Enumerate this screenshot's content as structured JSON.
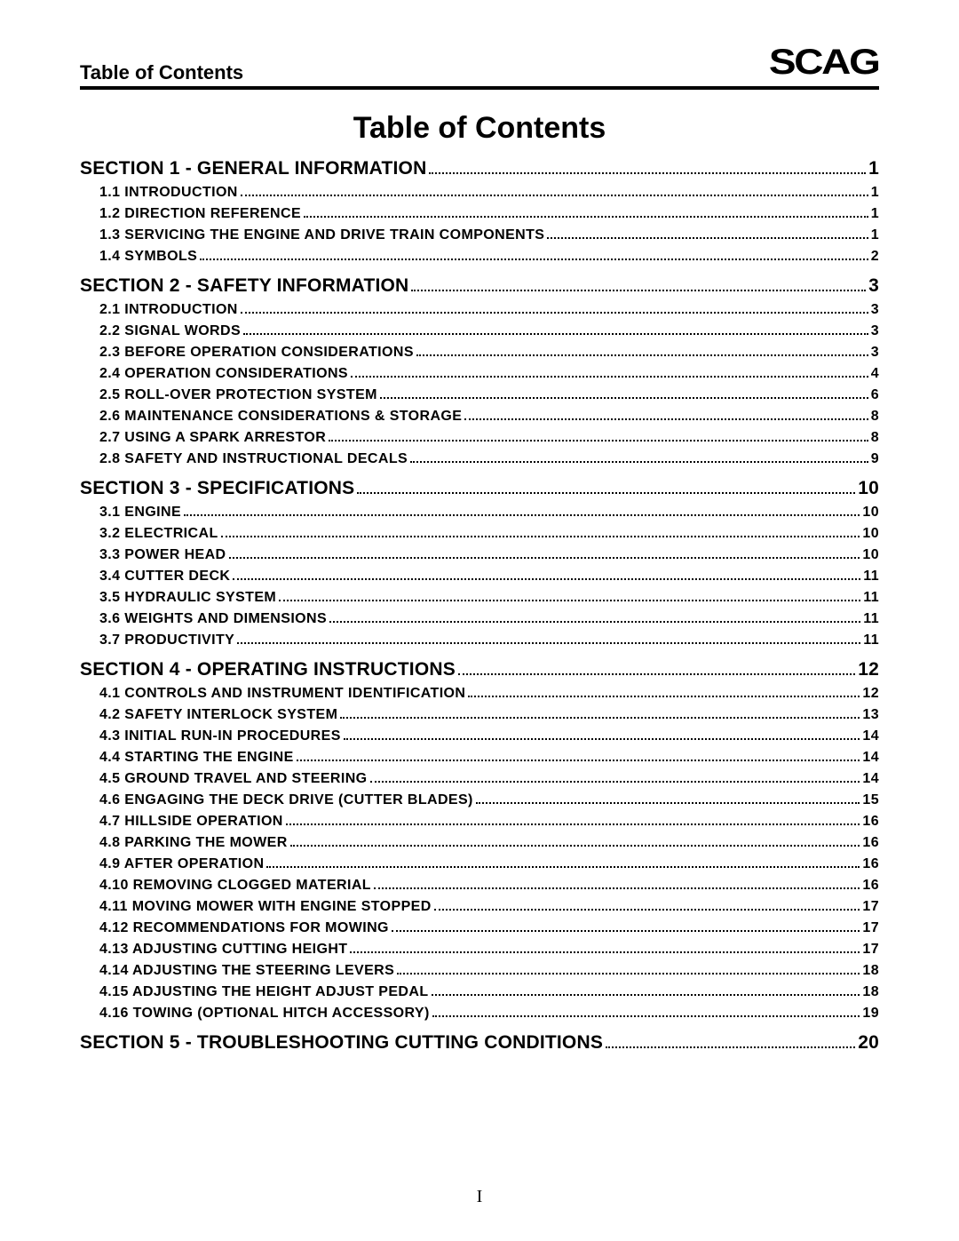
{
  "header": {
    "running_title": "Table of Contents",
    "logo_text": "SCAG"
  },
  "main_title": "Table of Contents",
  "page_number": "I",
  "colors": {
    "text": "#000000",
    "background": "#ffffff",
    "rule": "#000000"
  },
  "typography": {
    "header_running_title_fontsize": 22,
    "logo_fontsize": 40,
    "main_title_fontsize": 34,
    "section_fontsize": 21,
    "sub_fontsize": 16,
    "page_number_fontsize": 20
  },
  "toc": {
    "sections": [
      {
        "label": "SECTION 1 - GENERAL INFORMATION",
        "page": "1",
        "items": [
          {
            "label": "1.1 INTRODUCTION",
            "page": "1"
          },
          {
            "label": "1.2 DIRECTION REFERENCE",
            "page": "1"
          },
          {
            "label": "1.3 SERVICING THE ENGINE AND DRIVE TRAIN COMPONENTS",
            "page": "1"
          },
          {
            "label": "1.4 SYMBOLS",
            "page": "2"
          }
        ]
      },
      {
        "label": "SECTION 2 - SAFETY INFORMATION",
        "page": "3",
        "items": [
          {
            "label": "2.1 INTRODUCTION",
            "page": "3"
          },
          {
            "label": "2.2 SIGNAL WORDS",
            "page": "3"
          },
          {
            "label": "2.3 BEFORE OPERATION CONSIDERATIONS",
            "page": "3"
          },
          {
            "label": "2.4 OPERATION CONSIDERATIONS",
            "page": "4"
          },
          {
            "label": "2.5 ROLL-OVER PROTECTION SYSTEM",
            "page": "6"
          },
          {
            "label": "2.6 MAINTENANCE CONSIDERATIONS & STORAGE",
            "page": "8"
          },
          {
            "label": "2.7 USING A SPARK ARRESTOR",
            "page": "8"
          },
          {
            "label": "2.8 SAFETY AND INSTRUCTIONAL DECALS",
            "page": "9"
          }
        ]
      },
      {
        "label": "SECTION 3 - SPECIFICATIONS",
        "page": "10",
        "items": [
          {
            "label": "3.1 ENGINE",
            "page": "10"
          },
          {
            "label": "3.2 ELECTRICAL",
            "page": "10"
          },
          {
            "label": "3.3 POWER HEAD",
            "page": "10"
          },
          {
            "label": "3.4 CUTTER DECK",
            "page": "11"
          },
          {
            "label": "3.5 HYDRAULIC SYSTEM",
            "page": "11"
          },
          {
            "label": "3.6 WEIGHTS AND DIMENSIONS",
            "page": "11"
          },
          {
            "label": "3.7 PRODUCTIVITY",
            "page": "11"
          }
        ]
      },
      {
        "label": "SECTION 4 - OPERATING INSTRUCTIONS",
        "page": "12",
        "items": [
          {
            "label": "4.1 CONTROLS AND INSTRUMENT IDENTIFICATION",
            "page": "12"
          },
          {
            "label": "4.2 SAFETY INTERLOCK SYSTEM",
            "page": "13"
          },
          {
            "label": "4.3 INITIAL RUN-IN PROCEDURES",
            "page": "14"
          },
          {
            "label": "4.4 STARTING THE ENGINE",
            "page": "14"
          },
          {
            "label": "4.5 GROUND TRAVEL AND STEERING",
            "page": "14"
          },
          {
            "label": "4.6 ENGAGING THE DECK DRIVE (CUTTER BLADES)",
            "page": "15"
          },
          {
            "label": "4.7 HILLSIDE OPERATION",
            "page": "16"
          },
          {
            "label": "4.8 PARKING THE MOWER",
            "page": "16"
          },
          {
            "label": "4.9 AFTER OPERATION",
            "page": "16"
          },
          {
            "label": "4.10 REMOVING CLOGGED MATERIAL",
            "page": "16"
          },
          {
            "label": "4.11 MOVING MOWER WITH ENGINE STOPPED",
            "page": "17"
          },
          {
            "label": "4.12 RECOMMENDATIONS FOR MOWING",
            "page": "17"
          },
          {
            "label": "4.13 ADJUSTING CUTTING HEIGHT",
            "page": "17"
          },
          {
            "label": "4.14 ADJUSTING THE STEERING LEVERS",
            "page": "18"
          },
          {
            "label": "4.15 ADJUSTING THE HEIGHT ADJUST PEDAL",
            "page": "18"
          },
          {
            "label": "4.16 TOWING (OPTIONAL HITCH ACCESSORY)",
            "page": "19"
          }
        ]
      },
      {
        "label": "SECTION 5 - TROUBLESHOOTING CUTTING CONDITIONS",
        "page": "20",
        "items": []
      }
    ]
  }
}
